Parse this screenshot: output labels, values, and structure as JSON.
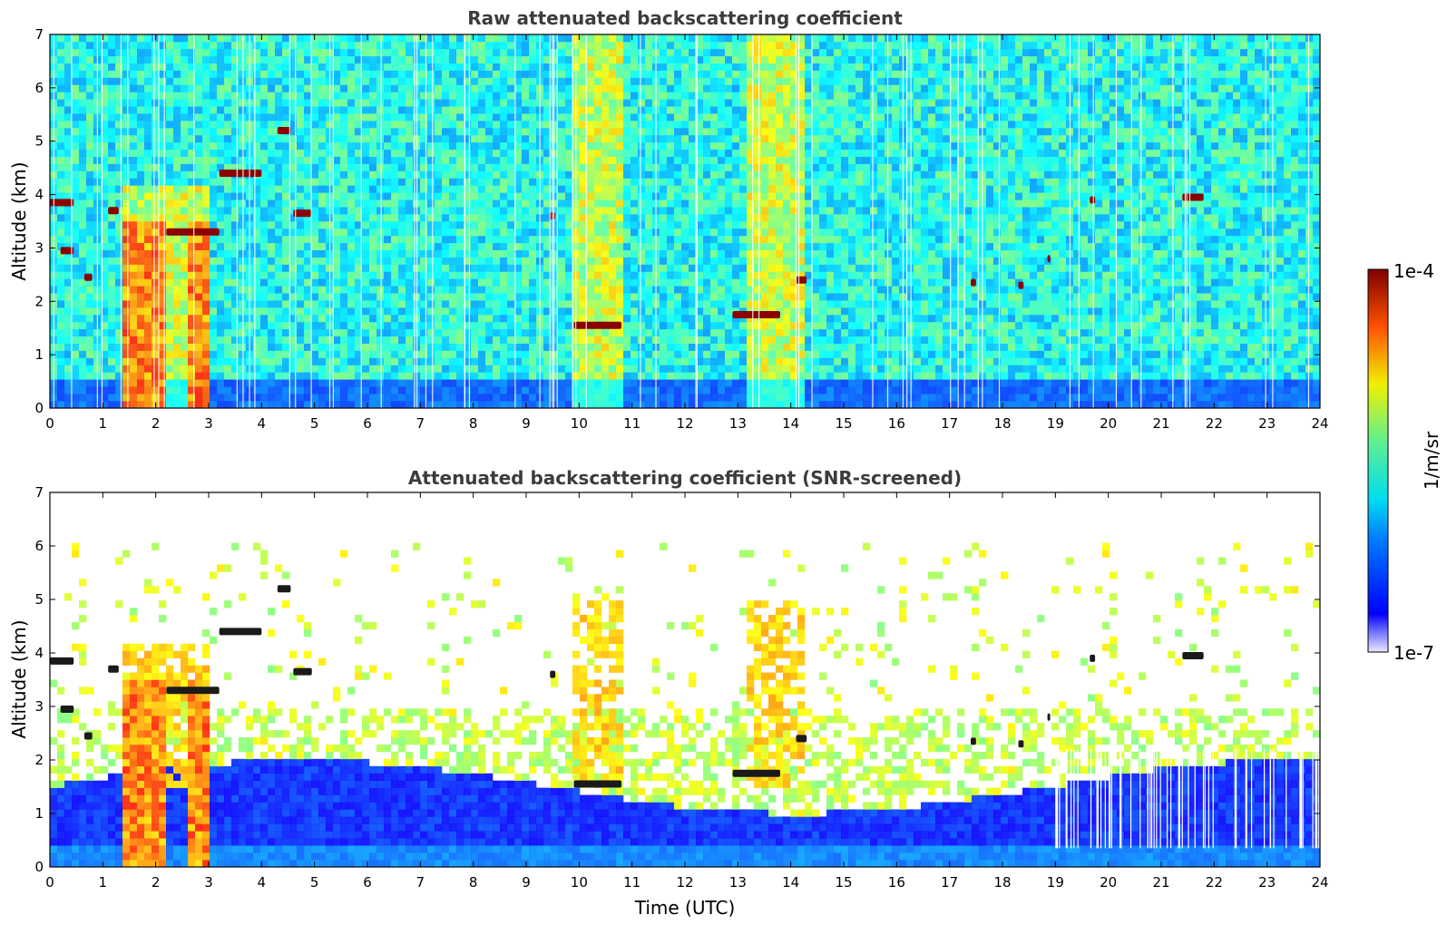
{
  "chart_data": [
    {
      "type": "heatmap",
      "title": "Raw attenuated backscattering coefficient",
      "ylabel": "Altitude (km)",
      "xlabel": "",
      "xlim": [
        0,
        24
      ],
      "ylim": [
        0,
        7
      ],
      "x_ticks": [
        "0",
        "1",
        "2",
        "3",
        "4",
        "5",
        "6",
        "7",
        "8",
        "9",
        "10",
        "11",
        "12",
        "13",
        "14",
        "15",
        "16",
        "17",
        "18",
        "19",
        "20",
        "21",
        "22",
        "23",
        "24"
      ],
      "y_ticks": [
        "0",
        "1",
        "2",
        "3",
        "4",
        "5",
        "6",
        "7"
      ],
      "screened": false,
      "features": {
        "aerosol_layer_top_km": 0.6,
        "precipitation_columns": [
          {
            "x": [
              1.4,
              2.2
            ]
          },
          {
            "x": [
              2.6,
              3.05
            ]
          }
        ],
        "enhanced_bands": [
          {
            "x": [
              1.4,
              3.0
            ],
            "top_km": 4.2
          },
          {
            "x": [
              9.9,
              10.9
            ],
            "top_km": 7
          },
          {
            "x": [
              13.2,
              14.3
            ],
            "top_km": 7
          }
        ],
        "cloud_segments": [
          {
            "x": [
              0.0,
              0.45
            ],
            "y": 3.85
          },
          {
            "x": [
              0.2,
              0.45
            ],
            "y": 2.95
          },
          {
            "x": [
              0.65,
              0.8
            ],
            "y": 2.45
          },
          {
            "x": [
              1.1,
              1.3
            ],
            "y": 3.7
          },
          {
            "x": [
              2.2,
              3.2
            ],
            "y": 3.3
          },
          {
            "x": [
              3.2,
              4.0
            ],
            "y": 4.4
          },
          {
            "x": [
              4.3,
              4.55
            ],
            "y": 5.2
          },
          {
            "x": [
              4.6,
              4.95
            ],
            "y": 3.65
          },
          {
            "x": [
              9.45,
              9.55
            ],
            "y": 3.6
          },
          {
            "x": [
              9.9,
              10.8
            ],
            "y": 1.55
          },
          {
            "x": [
              12.9,
              13.8
            ],
            "y": 1.75
          },
          {
            "x": [
              14.1,
              14.3
            ],
            "y": 2.4
          },
          {
            "x": [
              17.4,
              17.5
            ],
            "y": 2.35
          },
          {
            "x": [
              18.3,
              18.4
            ],
            "y": 2.3
          },
          {
            "x": [
              18.85,
              18.9
            ],
            "y": 2.8
          },
          {
            "x": [
              19.65,
              19.75
            ],
            "y": 3.9
          },
          {
            "x": [
              21.4,
              21.8
            ],
            "y": 3.95
          }
        ]
      }
    },
    {
      "type": "heatmap",
      "title": "Attenuated backscattering coefficient (SNR-screened)",
      "ylabel": "Altitude (km)",
      "xlabel": "Time (UTC)",
      "xlim": [
        0,
        24
      ],
      "ylim": [
        0,
        7
      ],
      "x_ticks": [
        "0",
        "1",
        "2",
        "3",
        "4",
        "5",
        "6",
        "7",
        "8",
        "9",
        "10",
        "11",
        "12",
        "13",
        "14",
        "15",
        "16",
        "17",
        "18",
        "19",
        "20",
        "21",
        "22",
        "23",
        "24"
      ],
      "y_ticks": [
        "0",
        "1",
        "2",
        "3",
        "4",
        "5",
        "6",
        "7"
      ],
      "screened": true,
      "features": {
        "valid_signal_top_km": 2.0,
        "screened_above_km": 3.0,
        "saturated_color": "#1a1a1a"
      }
    }
  ],
  "colorbar": {
    "label": "1/m/sr",
    "max_label": "1e-4",
    "min_label": "1e-7",
    "scale": "log",
    "range": [
      1e-07,
      0.0001
    ],
    "colormap": "jet"
  },
  "colors": {
    "title": "#3c3c3c",
    "cloud": "#8b0000",
    "low": "#0a28ff",
    "noise_mid": "#00c8d6"
  }
}
